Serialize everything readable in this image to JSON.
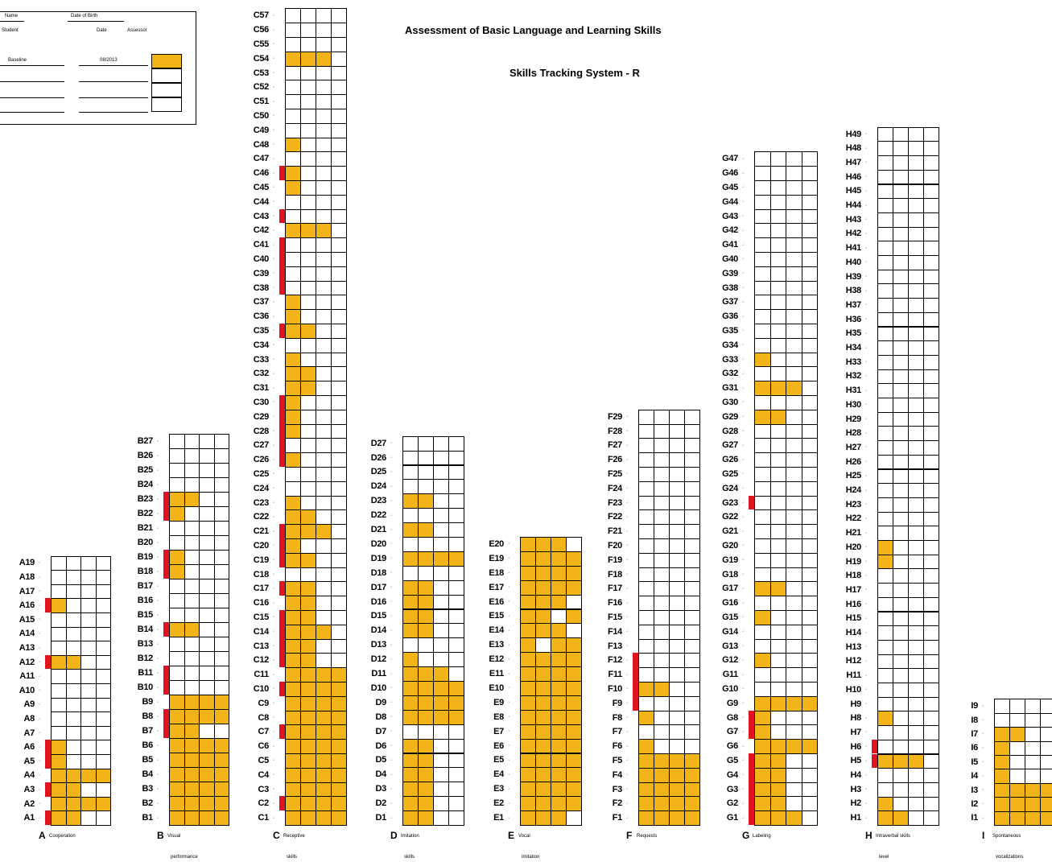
{
  "title": "Assessment of Basic Language and Learning Skills",
  "subtitle": "Skills Tracking System - R",
  "info_box": {
    "row1": [
      "Name",
      "Date of Birth"
    ],
    "row2": [
      "Student",
      "Date",
      "Assessor"
    ],
    "entry": [
      "Baseline",
      "08/2013"
    ],
    "swatch_color": "#F2B418"
  },
  "colors": {
    "mastered": "#F2B418",
    "target": "#E0141E"
  },
  "domains": [
    {
      "letter": "A",
      "name": "Cooperation",
      "name2": "",
      "count": 19,
      "cols": 4,
      "filled": [
        [
          1,
          [
            1,
            2
          ]
        ],
        [
          2,
          [
            1,
            2,
            3,
            4
          ]
        ],
        [
          3,
          [
            1,
            2
          ]
        ],
        [
          4,
          [
            1,
            2,
            3,
            4
          ]
        ],
        [
          5,
          [
            1
          ]
        ],
        [
          6,
          [
            1
          ]
        ],
        [
          12,
          [
            1,
            2
          ]
        ],
        [
          16,
          [
            1
          ]
        ]
      ],
      "red": [
        1,
        3,
        5,
        6,
        12,
        16
      ]
    },
    {
      "letter": "B",
      "name": "Visual",
      "name2": "performance",
      "count": 27,
      "cols": 4,
      "filled": [
        [
          1,
          [
            1,
            2,
            3,
            4
          ]
        ],
        [
          2,
          [
            1,
            2,
            3,
            4
          ]
        ],
        [
          3,
          [
            1,
            2,
            3,
            4
          ]
        ],
        [
          4,
          [
            1,
            2,
            3,
            4
          ]
        ],
        [
          5,
          [
            1,
            2,
            3,
            4
          ]
        ],
        [
          6,
          [
            1,
            2,
            3,
            4
          ]
        ],
        [
          7,
          [
            1,
            2
          ]
        ],
        [
          8,
          [
            1,
            2,
            3,
            4
          ]
        ],
        [
          9,
          [
            1,
            2,
            3,
            4
          ]
        ],
        [
          14,
          [
            1,
            2
          ]
        ],
        [
          18,
          [
            1
          ]
        ],
        [
          19,
          [
            1
          ]
        ],
        [
          22,
          [
            1
          ]
        ],
        [
          23,
          [
            1,
            2
          ]
        ]
      ],
      "red": [
        7,
        8,
        10,
        11,
        14,
        18,
        19,
        22,
        23
      ]
    },
    {
      "letter": "C",
      "name": "Receptive",
      "name2": "skills",
      "count": 57,
      "cols": 4,
      "filled": [
        [
          1,
          [
            1,
            2,
            3,
            4
          ]
        ],
        [
          2,
          [
            1,
            2,
            3,
            4
          ]
        ],
        [
          3,
          [
            1,
            2,
            3,
            4
          ]
        ],
        [
          4,
          [
            1,
            2,
            3,
            4
          ]
        ],
        [
          5,
          [
            1,
            2,
            3,
            4
          ]
        ],
        [
          6,
          [
            1,
            2,
            3,
            4
          ]
        ],
        [
          7,
          [
            1,
            2,
            3,
            4
          ]
        ],
        [
          8,
          [
            1,
            2,
            3,
            4
          ]
        ],
        [
          9,
          [
            1,
            2,
            3,
            4
          ]
        ],
        [
          10,
          [
            1,
            2,
            3,
            4
          ]
        ],
        [
          11,
          [
            1,
            2,
            3,
            4
          ]
        ],
        [
          12,
          [
            1,
            2
          ]
        ],
        [
          13,
          [
            1,
            2
          ]
        ],
        [
          14,
          [
            1,
            2,
            3
          ]
        ],
        [
          15,
          [
            1,
            2
          ]
        ],
        [
          16,
          [
            1,
            2
          ]
        ],
        [
          17,
          [
            1,
            2
          ]
        ],
        [
          19,
          [
            1,
            2
          ]
        ],
        [
          20,
          [
            1
          ]
        ],
        [
          21,
          [
            1,
            2,
            3
          ]
        ],
        [
          22,
          [
            1,
            2
          ]
        ],
        [
          23,
          [
            1
          ]
        ],
        [
          26,
          [
            1
          ]
        ],
        [
          28,
          [
            1
          ]
        ],
        [
          29,
          [
            1
          ]
        ],
        [
          30,
          [
            1
          ]
        ],
        [
          31,
          [
            1,
            2
          ]
        ],
        [
          32,
          [
            1,
            2
          ]
        ],
        [
          33,
          [
            1
          ]
        ],
        [
          35,
          [
            1,
            2
          ]
        ],
        [
          36,
          [
            1
          ]
        ],
        [
          37,
          [
            1
          ]
        ],
        [
          42,
          [
            1,
            2,
            3
          ]
        ],
        [
          45,
          [
            1
          ]
        ],
        [
          46,
          [
            1
          ]
        ],
        [
          48,
          [
            1
          ]
        ],
        [
          54,
          [
            1,
            2,
            3
          ]
        ]
      ],
      "red": [
        2,
        7,
        10,
        12,
        13,
        14,
        15,
        17,
        19,
        20,
        21,
        26,
        27,
        28,
        29,
        30,
        35,
        38,
        39,
        40,
        41,
        43,
        46
      ]
    },
    {
      "letter": "D",
      "name": "Imitation",
      "name2": "skills",
      "count": 27,
      "cols": 4,
      "filled": [
        [
          1,
          [
            1,
            2
          ]
        ],
        [
          2,
          [
            1,
            2
          ]
        ],
        [
          3,
          [
            1,
            2
          ]
        ],
        [
          4,
          [
            1,
            2
          ]
        ],
        [
          5,
          [
            1,
            2
          ]
        ],
        [
          6,
          [
            1,
            2
          ]
        ],
        [
          8,
          [
            1,
            2,
            3,
            4
          ]
        ],
        [
          9,
          [
            1,
            2,
            3,
            4
          ]
        ],
        [
          10,
          [
            1,
            2,
            3,
            4
          ]
        ],
        [
          11,
          [
            1,
            2,
            3
          ]
        ],
        [
          12,
          [
            1
          ]
        ],
        [
          14,
          [
            1,
            2
          ]
        ],
        [
          15,
          [
            1,
            2
          ]
        ],
        [
          16,
          [
            1,
            2
          ]
        ],
        [
          17,
          [
            1,
            2
          ]
        ],
        [
          19,
          [
            1,
            2,
            3,
            4
          ]
        ],
        [
          21,
          [
            1,
            2
          ]
        ],
        [
          23,
          [
            1,
            2
          ]
        ]
      ],
      "red": []
    },
    {
      "letter": "E",
      "name": "Vocal",
      "name2": "imitation",
      "count": 20,
      "cols": 4,
      "filled": [
        [
          1,
          [
            1,
            2,
            3
          ]
        ],
        [
          2,
          [
            1,
            2,
            3,
            4
          ]
        ],
        [
          3,
          [
            1,
            2,
            3,
            4
          ]
        ],
        [
          4,
          [
            1,
            2,
            3,
            4
          ]
        ],
        [
          5,
          [
            1,
            2,
            3,
            4
          ]
        ],
        [
          6,
          [
            1,
            2,
            3,
            4
          ]
        ],
        [
          7,
          [
            1,
            2,
            3,
            4
          ]
        ],
        [
          8,
          [
            1,
            2,
            3,
            4
          ]
        ],
        [
          9,
          [
            1,
            2,
            3,
            4
          ]
        ],
        [
          10,
          [
            1,
            2,
            3,
            4
          ]
        ],
        [
          11,
          [
            1,
            2,
            3,
            4
          ]
        ],
        [
          12,
          [
            1,
            2,
            3,
            4
          ]
        ],
        [
          13,
          [
            1,
            3,
            4
          ]
        ],
        [
          14,
          [
            1,
            2,
            3
          ]
        ],
        [
          15,
          [
            1,
            2,
            4
          ]
        ],
        [
          16,
          [
            1,
            2,
            3
          ]
        ],
        [
          17,
          [
            1,
            2,
            3,
            4
          ]
        ],
        [
          18,
          [
            1,
            2,
            3,
            4
          ]
        ],
        [
          19,
          [
            1,
            2,
            3,
            4
          ]
        ],
        [
          20,
          [
            1,
            2,
            3
          ]
        ]
      ],
      "red": []
    },
    {
      "letter": "F",
      "name": "Requests",
      "name2": "",
      "count": 29,
      "cols": 4,
      "filled": [
        [
          1,
          [
            1,
            2,
            3,
            4
          ]
        ],
        [
          2,
          [
            1,
            2,
            3,
            4
          ]
        ],
        [
          3,
          [
            1,
            2,
            3,
            4
          ]
        ],
        [
          4,
          [
            1,
            2,
            3,
            4
          ]
        ],
        [
          5,
          [
            1,
            2,
            3,
            4
          ]
        ],
        [
          6,
          [
            1
          ]
        ],
        [
          8,
          [
            1
          ]
        ],
        [
          10,
          [
            1,
            2
          ]
        ]
      ],
      "red": [
        9,
        10,
        11,
        12
      ]
    },
    {
      "letter": "G",
      "name": "Labeling",
      "name2": "",
      "count": 47,
      "cols": 4,
      "filled": [
        [
          1,
          [
            1,
            2,
            3
          ]
        ],
        [
          2,
          [
            1,
            2
          ]
        ],
        [
          3,
          [
            1,
            2
          ]
        ],
        [
          4,
          [
            1,
            2
          ]
        ],
        [
          5,
          [
            1,
            2
          ]
        ],
        [
          6,
          [
            1,
            2,
            3,
            4
          ]
        ],
        [
          7,
          [
            1
          ]
        ],
        [
          8,
          [
            1
          ]
        ],
        [
          9,
          [
            1,
            2,
            3,
            4
          ]
        ],
        [
          12,
          [
            1
          ]
        ],
        [
          15,
          [
            1
          ]
        ],
        [
          17,
          [
            1,
            2
          ]
        ],
        [
          29,
          [
            1,
            2
          ]
        ],
        [
          31,
          [
            1,
            2,
            3
          ]
        ],
        [
          33,
          [
            1
          ]
        ]
      ],
      "red": [
        1,
        2,
        3,
        4,
        5,
        7,
        8,
        23
      ]
    },
    {
      "letter": "H",
      "name": "Intraverbal skills",
      "name2": "level",
      "count": 49,
      "cols": 4,
      "filled": [
        [
          1,
          [
            1,
            2
          ]
        ],
        [
          2,
          [
            1
          ]
        ],
        [
          5,
          [
            1,
            2,
            3
          ]
        ],
        [
          8,
          [
            1
          ]
        ],
        [
          19,
          [
            1
          ]
        ],
        [
          20,
          [
            1
          ]
        ]
      ],
      "red": [
        5,
        6
      ]
    },
    {
      "letter": "I",
      "name": "Spontaneous",
      "name2": "vocalizations",
      "count": 9,
      "cols": 4,
      "filled": [
        [
          1,
          [
            1,
            2,
            3,
            4
          ]
        ],
        [
          2,
          [
            1,
            2,
            3,
            4
          ]
        ],
        [
          3,
          [
            1,
            2,
            3,
            4
          ]
        ],
        [
          4,
          [
            1
          ]
        ],
        [
          5,
          [
            1
          ]
        ],
        [
          6,
          [
            1
          ]
        ],
        [
          7,
          [
            1,
            2
          ]
        ]
      ],
      "red": []
    }
  ]
}
